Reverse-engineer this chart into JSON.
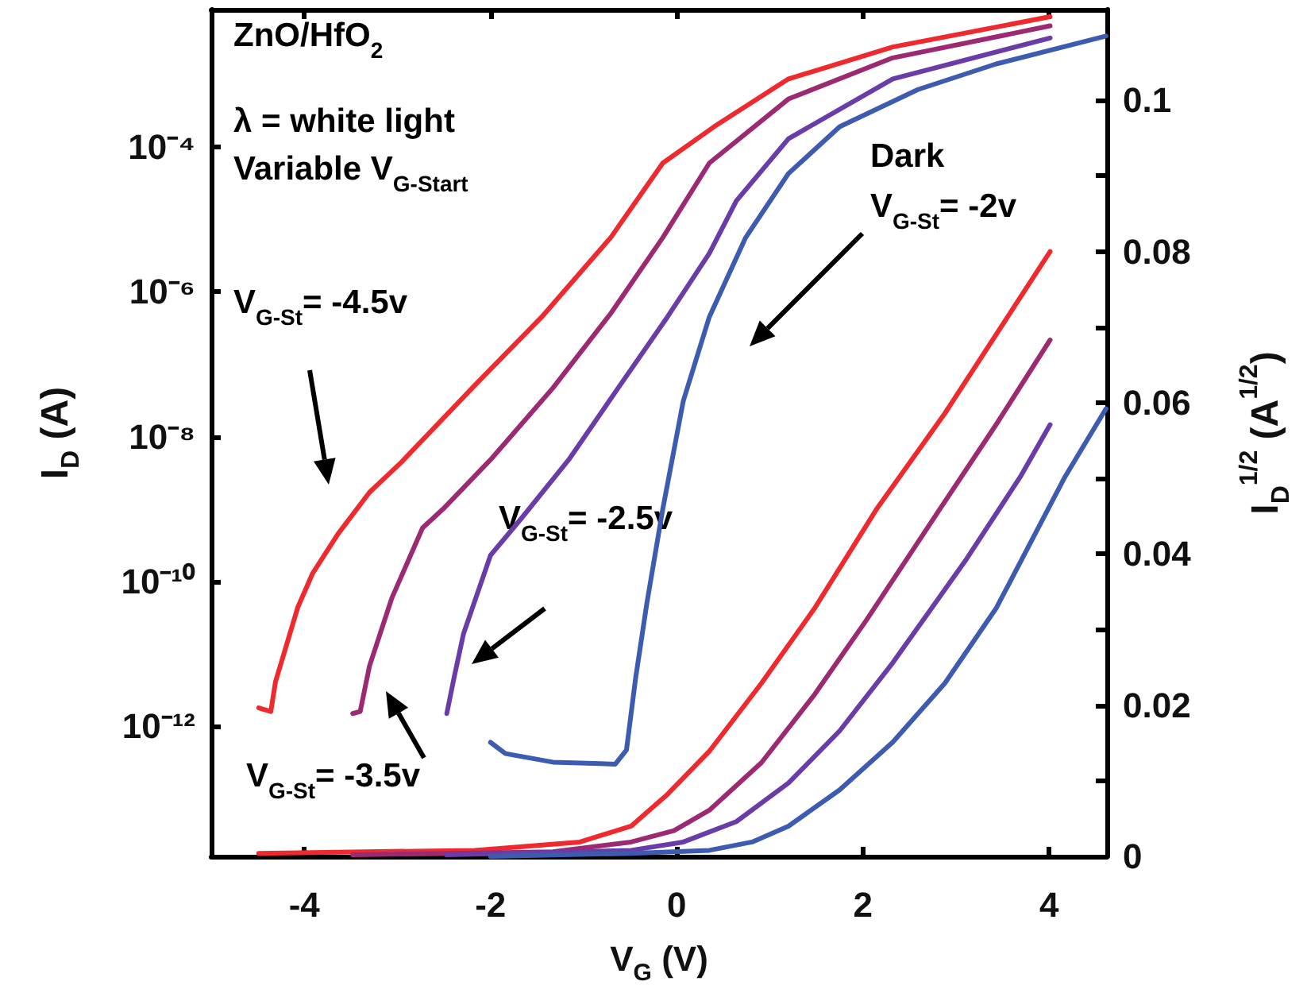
{
  "chart_data": {
    "type": "line",
    "xlabel": "V$_{G}$ (V)",
    "ylabel": "I$_{D}$ (A)",
    "y2label": "I$_{D}$$^{1/2}$ (A$^{1/2}$)",
    "log": "y",
    "grid": false,
    "marker": "none",
    "line_style": "solid",
    "xlim": [
      -5,
      4.62
    ],
    "xticks": [
      -4,
      -2,
      0,
      2,
      4
    ],
    "ylim": [
      1.6e-14,
      0.0079
    ],
    "yticks": [
      {
        "value": 1e-12,
        "label": "10⁻¹²"
      },
      {
        "value": 1e-10,
        "label": "10⁻¹⁰"
      },
      {
        "value": 1e-08,
        "label": "10⁻⁸"
      },
      {
        "value": 1e-06,
        "label": "10⁻⁶"
      },
      {
        "value": 0.0001,
        "label": "10⁻⁴"
      }
    ],
    "y2lim": [
      0,
      0.112
    ],
    "y2ticks": [
      0,
      {
        "value": 0.01,
        "label": null
      },
      0.02,
      {
        "value": 0.03,
        "label": null
      },
      0.04,
      {
        "value": 0.05,
        "label": null
      },
      0.06,
      {
        "value": 0.07,
        "label": null
      },
      0.08,
      {
        "value": 0.09,
        "label": null
      },
      0.1
    ],
    "series": [
      {
        "color": "#ee2a2e",
        "x": [
          -4.49,
          -4.36,
          -4.31,
          -4.07,
          -3.91,
          -3.64,
          -3.3,
          -2.96,
          -2.17,
          -1.45,
          -0.71,
          -0.15,
          0.4,
          1.2,
          2.32,
          4.01
        ],
        "values": [
          1.8e-12,
          1.6e-12,
          4.1e-12,
          4.4e-11,
          1.3e-10,
          4.5e-10,
          1.7e-09,
          4.4e-09,
          5.1e-08,
          4.5e-07,
          5.6e-06,
          6e-05,
          0.00019,
          0.00087,
          0.0024,
          0.0063
        ]
      },
      {
        "color": "#9b2a72",
        "x": [
          -3.48,
          -3.4,
          -3.3,
          -3.06,
          -2.73,
          -2.51,
          -2.0,
          -1.33,
          -0.71,
          -0.15,
          0.35,
          1.2,
          2.32,
          4.01
        ],
        "values": [
          1.5e-12,
          1.6e-12,
          6.8e-12,
          5.9e-11,
          5.5e-10,
          1e-09,
          4.8e-09,
          4.7e-08,
          5e-07,
          5.6e-06,
          6e-05,
          0.00046,
          0.0017,
          0.0047
        ]
      },
      {
        "color": "#6a3ca8",
        "x": [
          -2.47,
          -2.39,
          -2.29,
          -2.0,
          -1.67,
          -1.16,
          -0.61,
          -0.1,
          0.35,
          0.64,
          1.2,
          2.32,
          4.01
        ],
        "values": [
          1.5e-12,
          4.8e-12,
          1.9e-11,
          2.3e-10,
          7.4e-10,
          4.8e-09,
          5.1e-08,
          4.5e-07,
          3.4e-06,
          1.8e-05,
          0.00013,
          0.00087,
          0.0032
        ]
      },
      {
        "color": "#3d5cb0",
        "x": [
          -2.0,
          -1.84,
          -1.33,
          -0.66,
          -0.54,
          -0.44,
          -0.32,
          -0.15,
          0.07,
          0.35,
          0.74,
          1.2,
          1.75,
          2.59,
          3.43,
          4.61
        ],
        "values": [
          6e-13,
          4.2e-13,
          3.2e-13,
          3e-13,
          4.7e-13,
          4.8e-12,
          5.1e-11,
          1e-09,
          3.1e-08,
          4.5e-07,
          5.6e-06,
          4.3e-05,
          0.00019,
          0.00062,
          0.0014,
          0.0034
        ]
      },
      {
        "color": "#ee2a2e",
        "axis": "y2",
        "x": [
          -4.49,
          -2.17,
          -1.04,
          -0.49,
          -0.1,
          0.35,
          0.91,
          1.48,
          2.15,
          2.88,
          4.01
        ],
        "values": [
          0.0004,
          0.0008,
          0.0019,
          0.004,
          0.0082,
          0.0139,
          0.0229,
          0.0328,
          0.046,
          0.0586,
          0.08
        ]
      },
      {
        "color": "#9b2a72",
        "axis": "y2",
        "x": [
          -3.48,
          -1.33,
          -0.49,
          -0.03,
          0.35,
          0.91,
          1.48,
          2.04,
          2.83,
          3.43,
          4.01
        ],
        "values": [
          0.0002,
          0.0006,
          0.0019,
          0.0034,
          0.0061,
          0.0124,
          0.0214,
          0.0313,
          0.046,
          0.0571,
          0.0683
        ]
      },
      {
        "color": "#6a3ca8",
        "axis": "y2",
        "x": [
          -2.47,
          -0.49,
          0.07,
          0.64,
          1.2,
          1.75,
          2.32,
          3.1,
          3.69,
          4.01
        ],
        "values": [
          0.0002,
          0.0008,
          0.0019,
          0.0046,
          0.0097,
          0.0166,
          0.0256,
          0.0391,
          0.0502,
          0.0571
        ]
      },
      {
        "color": "#3d5cb0",
        "axis": "y2",
        "x": [
          -2.0,
          -0.49,
          0.35,
          0.81,
          1.2,
          1.75,
          2.32,
          2.88,
          3.43,
          4.17,
          4.61
        ],
        "values": [
          0.0,
          0.0004,
          0.0008,
          0.0019,
          0.004,
          0.0088,
          0.0151,
          0.0229,
          0.0328,
          0.0502,
          0.0592
        ]
      }
    ],
    "annotations": [
      "ZnO/HfO$_{2}$",
      "λ = white light",
      "Variable V$_{G-Start}$",
      "V$_{G-St}$= -4.5v",
      "V$_{G-St}$= -3.5v",
      "V$_{G-St}$= -2.5v",
      "Dark\nV$_{G-St}$= -2v"
    ]
  }
}
